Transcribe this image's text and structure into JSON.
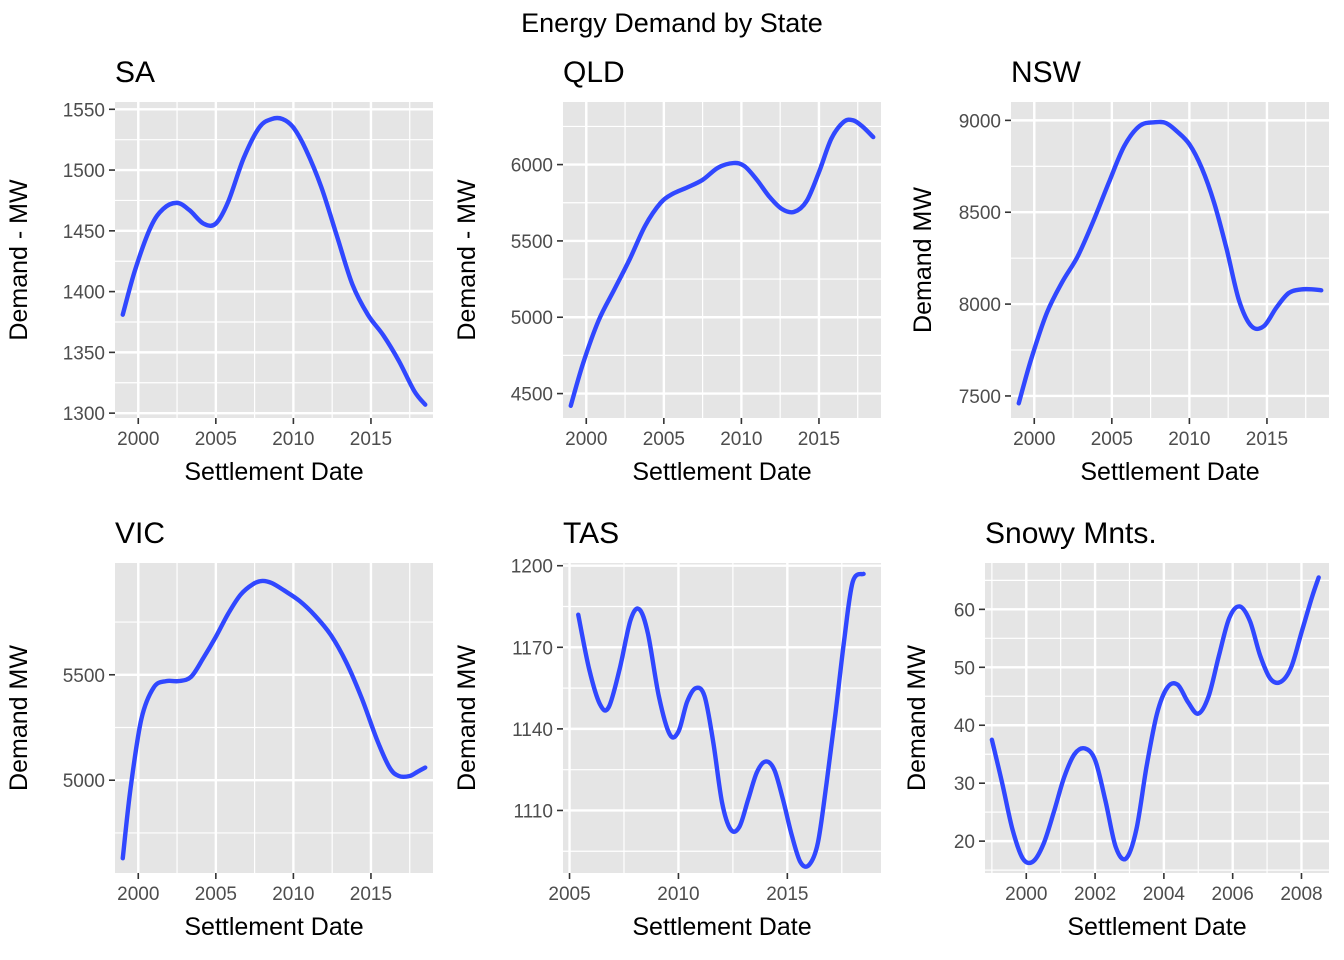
{
  "figure": {
    "title": "Energy Demand by State"
  },
  "colors": {
    "panel_background": "#e5e5e5",
    "grid": "#ffffff",
    "line": "#3047ff",
    "tick": "#333333"
  },
  "chart_data": [
    {
      "type": "line",
      "title": "SA",
      "xlabel": "Settlement Date",
      "ylabel": "Demand - MW",
      "xlim": [
        1998.5,
        2019.0
      ],
      "ylim": [
        1296,
        1556
      ],
      "x_ticks": [
        2000,
        2005,
        2010,
        2015
      ],
      "x_tick_labels": [
        "2000",
        "2005",
        "2010",
        "2015"
      ],
      "y_ticks": [
        1300,
        1350,
        1400,
        1450,
        1500,
        1550
      ],
      "y_tick_labels": [
        "1300",
        "1350",
        "1400",
        "1450",
        "1500",
        "1550"
      ],
      "series": [
        {
          "x": [
            1999.0,
            1999.8,
            2000.8,
            2001.6,
            2002.5,
            2003.3,
            2004.2,
            2005.0,
            2005.8,
            2006.8,
            2007.8,
            2008.6,
            2009.3,
            2010.0,
            2010.8,
            2011.8,
            2012.8,
            2013.8,
            2014.8,
            2015.8,
            2016.8,
            2017.8,
            2018.5
          ],
          "y": [
            1381,
            1418,
            1453,
            1468,
            1473,
            1467,
            1456,
            1456,
            1474,
            1510,
            1535,
            1542,
            1542,
            1535,
            1517,
            1486,
            1446,
            1406,
            1381,
            1364,
            1343,
            1318,
            1307
          ]
        }
      ]
    },
    {
      "type": "line",
      "title": "QLD",
      "xlabel": "Settlement Date",
      "ylabel": "Demand - MW",
      "xlim": [
        1998.5,
        2019.0
      ],
      "ylim": [
        4340,
        6410
      ],
      "x_ticks": [
        2000,
        2005,
        2010,
        2015
      ],
      "x_tick_labels": [
        "2000",
        "2005",
        "2010",
        "2015"
      ],
      "y_ticks": [
        4500,
        5000,
        5500,
        6000
      ],
      "y_tick_labels": [
        "4500",
        "5000",
        "5500",
        "6000"
      ],
      "series": [
        {
          "x": [
            1999.0,
            1999.8,
            2000.8,
            2001.8,
            2002.8,
            2003.8,
            2004.8,
            2005.6,
            2006.5,
            2007.5,
            2008.5,
            2009.5,
            2010.2,
            2011.0,
            2011.8,
            2012.6,
            2013.4,
            2014.2,
            2015.0,
            2015.8,
            2016.6,
            2017.2,
            2017.8,
            2018.5
          ],
          "y": [
            4420,
            4700,
            4980,
            5180,
            5380,
            5600,
            5750,
            5810,
            5850,
            5900,
            5980,
            6010,
            5990,
            5900,
            5790,
            5710,
            5690,
            5760,
            5950,
            6170,
            6280,
            6290,
            6250,
            6180
          ]
        }
      ]
    },
    {
      "type": "line",
      "title": "NSW",
      "xlabel": "Settlement Date",
      "ylabel": "Demand MW",
      "xlim": [
        1998.5,
        2019.0
      ],
      "ylim": [
        7380,
        9100
      ],
      "x_ticks": [
        2000,
        2005,
        2010,
        2015
      ],
      "x_tick_labels": [
        "2000",
        "2005",
        "2010",
        "2015"
      ],
      "y_ticks": [
        7500,
        8000,
        8500,
        9000
      ],
      "y_tick_labels": [
        "7500",
        "8000",
        "8500",
        "9000"
      ],
      "series": [
        {
          "x": [
            1999.0,
            1999.8,
            2000.8,
            2001.8,
            2002.8,
            2003.8,
            2004.8,
            2005.8,
            2006.8,
            2007.8,
            2008.5,
            2009.2,
            2010.0,
            2010.8,
            2011.6,
            2012.4,
            2013.2,
            2014.0,
            2014.8,
            2015.6,
            2016.4,
            2017.2,
            2018.0,
            2018.5
          ],
          "y": [
            7460,
            7700,
            7950,
            8120,
            8260,
            8450,
            8660,
            8860,
            8970,
            8990,
            8985,
            8940,
            8870,
            8740,
            8550,
            8300,
            8020,
            7880,
            7880,
            7980,
            8060,
            8080,
            8080,
            8075
          ]
        }
      ]
    },
    {
      "type": "line",
      "title": "VIC",
      "xlabel": "Settlement Date",
      "ylabel": "Demand MW",
      "xlim": [
        1998.5,
        2019.0
      ],
      "ylim": [
        4560,
        6030
      ],
      "x_ticks": [
        2000,
        2005,
        2010,
        2015
      ],
      "x_tick_labels": [
        "2000",
        "2005",
        "2010",
        "2015"
      ],
      "y_ticks": [
        5000,
        5500
      ],
      "y_tick_labels": [
        "5000",
        "5500"
      ],
      "series": [
        {
          "x": [
            1999.0,
            1999.5,
            2000.2,
            2001.0,
            2001.8,
            2002.6,
            2003.4,
            2004.2,
            2005.0,
            2005.8,
            2006.6,
            2007.4,
            2008.0,
            2008.6,
            2009.4,
            2010.4,
            2011.4,
            2012.4,
            2013.4,
            2014.4,
            2015.4,
            2016.2,
            2016.8,
            2017.5,
            2018.0,
            2018.5
          ],
          "y": [
            4630,
            4960,
            5290,
            5440,
            5470,
            5470,
            5490,
            5580,
            5680,
            5790,
            5880,
            5930,
            5945,
            5935,
            5900,
            5850,
            5780,
            5690,
            5560,
            5390,
            5190,
            5060,
            5020,
            5020,
            5040,
            5060
          ]
        }
      ]
    },
    {
      "type": "line",
      "title": "TAS",
      "xlabel": "Settlement Date",
      "ylabel": "Demand MW",
      "xlim": [
        2004.7,
        2019.3
      ],
      "ylim": [
        1087,
        1201
      ],
      "x_ticks": [
        2005,
        2010,
        2015
      ],
      "x_tick_labels": [
        "2005",
        "2010",
        "2015"
      ],
      "y_ticks": [
        1110,
        1140,
        1170,
        1200
      ],
      "y_tick_labels": [
        "1110",
        "1140",
        "1170",
        "1200"
      ],
      "series": [
        {
          "x": [
            2005.4,
            2005.9,
            2006.4,
            2006.8,
            2007.3,
            2007.8,
            2008.2,
            2008.6,
            2009.1,
            2009.6,
            2010.0,
            2010.4,
            2010.8,
            2011.2,
            2011.6,
            2012.0,
            2012.4,
            2012.8,
            2013.2,
            2013.6,
            2014.0,
            2014.4,
            2014.8,
            2015.2,
            2015.6,
            2016.0,
            2016.4,
            2016.8,
            2017.2,
            2017.6,
            2018.0,
            2018.5
          ],
          "y": [
            1182,
            1162,
            1149,
            1148,
            1162,
            1180,
            1184,
            1175,
            1152,
            1138,
            1139,
            1150,
            1155,
            1152,
            1135,
            1113,
            1103,
            1104,
            1114,
            1124,
            1128,
            1125,
            1114,
            1101,
            1091,
            1090,
            1098,
            1120,
            1145,
            1172,
            1194,
            1197
          ]
        }
      ]
    },
    {
      "type": "line",
      "title": "Snowy Mnts.",
      "xlabel": "Settlement Date",
      "ylabel": "Demand MW",
      "xlim": [
        1998.8,
        2008.8
      ],
      "ylim": [
        14.5,
        68
      ],
      "x_ticks": [
        2000,
        2002,
        2004,
        2006,
        2008
      ],
      "x_tick_labels": [
        "2000",
        "2002",
        "2004",
        "2006",
        "2008"
      ],
      "y_ticks": [
        20,
        30,
        40,
        50,
        60
      ],
      "y_tick_labels": [
        "20",
        "30",
        "40",
        "50",
        "60"
      ],
      "series": [
        {
          "x": [
            1999.0,
            1999.3,
            1999.6,
            1999.9,
            2000.2,
            2000.5,
            2000.8,
            2001.1,
            2001.4,
            2001.7,
            2002.0,
            2002.3,
            2002.6,
            2002.9,
            2003.2,
            2003.5,
            2003.8,
            2004.1,
            2004.4,
            2004.7,
            2005.0,
            2005.3,
            2005.6,
            2005.9,
            2006.2,
            2006.5,
            2006.8,
            2007.1,
            2007.4,
            2007.7,
            2008.0,
            2008.3,
            2008.5
          ],
          "y": [
            37.5,
            30,
            22,
            17,
            16.5,
            19.5,
            25,
            31,
            35,
            36,
            34,
            27,
            19,
            17,
            22,
            33,
            42,
            46.5,
            47,
            44,
            42,
            45,
            52,
            58.5,
            60.5,
            58,
            52,
            48,
            47.5,
            50,
            56,
            62,
            65.5
          ]
        }
      ]
    }
  ]
}
